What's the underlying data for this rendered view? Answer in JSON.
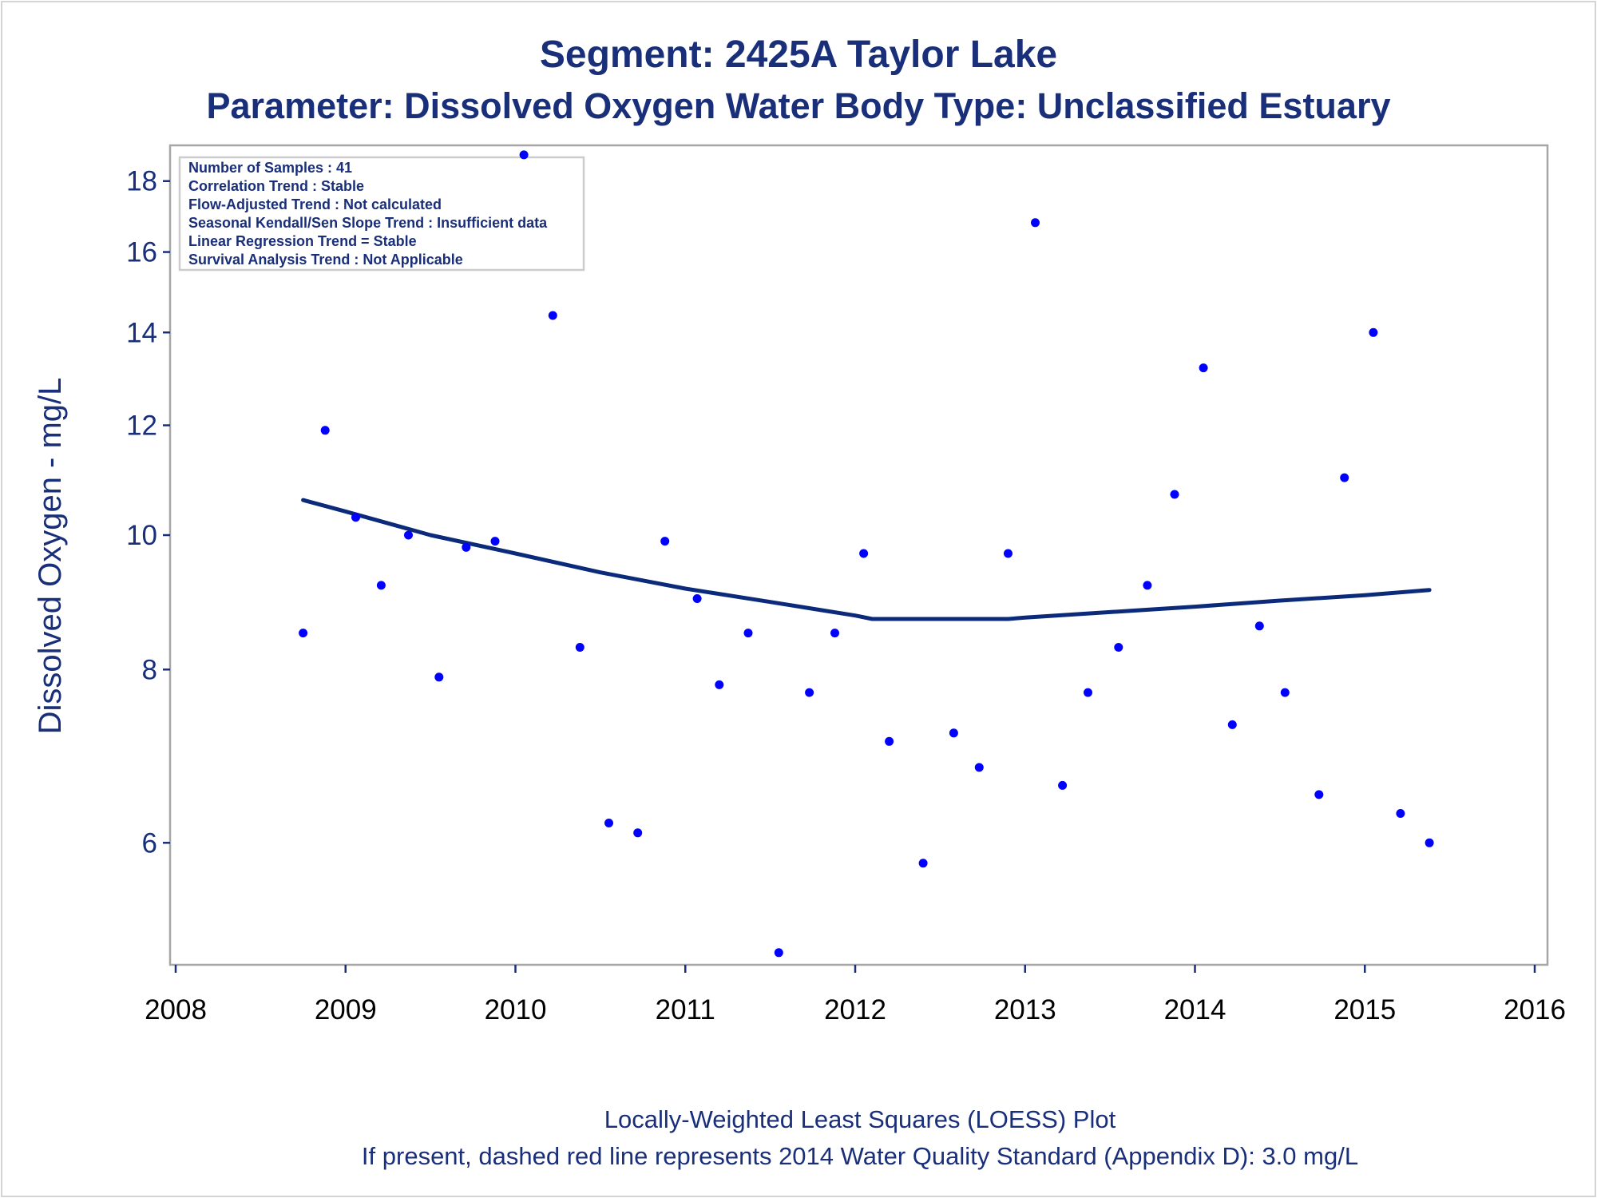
{
  "header": {
    "title": "Segment: 2425A  Taylor Lake",
    "subtitle": "Parameter: Dissolved Oxygen   Water Body Type: Unclassified Estuary"
  },
  "info_box": {
    "lines": [
      "Number of Samples : 41",
      "Correlation Trend : Stable",
      "Flow-Adjusted Trend : Not calculated",
      "Seasonal Kendall/Sen Slope Trend : Insufficient data",
      "Linear Regression Trend = Stable",
      "Survival Analysis Trend : Not Applicable"
    ]
  },
  "footnotes": {
    "line1": "Locally-Weighted Least Squares (LOESS) Plot",
    "line2": "If present, dashed red line represents 2014 Water Quality Standard (Appendix D): 3.0 mg/L"
  },
  "colors": {
    "text": "#1a2f7a",
    "points": "#0000ff",
    "loess": "#0b2a7a",
    "frame": "#a6a6a6"
  },
  "chart_data": {
    "type": "scatter",
    "xlabel": "",
    "ylabel": "Dissolved Oxygen - mg/L",
    "xlim": [
      2008,
      2016
    ],
    "ylim": [
      4.9,
      19.1
    ],
    "y_scale": "log",
    "xticks": [
      2008,
      2009,
      2010,
      2011,
      2012,
      2013,
      2014,
      2015,
      2016
    ],
    "yticks": [
      6,
      8,
      10,
      12,
      14,
      16,
      18
    ],
    "grid": false,
    "series": [
      {
        "kind": "points",
        "marker": "dot",
        "color": "#0000ff",
        "x": [
          2008.75,
          2008.88,
          2009.06,
          2009.21,
          2009.37,
          2009.55,
          2009.71,
          2009.88,
          2010.05,
          2010.22,
          2010.38,
          2010.55,
          2010.72,
          2010.88,
          2011.07,
          2011.2,
          2011.37,
          2011.55,
          2011.73,
          2011.88,
          2012.05,
          2012.2,
          2012.4,
          2012.58,
          2012.73,
          2012.9,
          2013.06,
          2013.22,
          2013.37,
          2013.55,
          2013.72,
          2013.88,
          2014.05,
          2014.22,
          2014.38,
          2014.53,
          2014.73,
          2014.88,
          2015.05,
          2015.21,
          2015.38
        ],
        "y": [
          8.5,
          11.9,
          10.3,
          9.2,
          10.0,
          7.9,
          9.8,
          9.9,
          18.8,
          14.4,
          8.3,
          6.2,
          6.1,
          9.9,
          9.0,
          7.8,
          8.5,
          5.0,
          7.7,
          8.5,
          9.7,
          7.1,
          5.8,
          7.2,
          6.8,
          9.7,
          16.8,
          6.6,
          7.7,
          8.3,
          9.2,
          10.7,
          13.2,
          7.3,
          8.6,
          7.7,
          6.5,
          11.0,
          14.0,
          6.3,
          6.0
        ]
      },
      {
        "kind": "line",
        "color": "#0b2a7a",
        "x": [
          2008.75,
          2009.0,
          2009.5,
          2010.0,
          2010.5,
          2011.0,
          2011.5,
          2012.0,
          2012.1,
          2012.35,
          2012.9,
          2013.0,
          2013.5,
          2014.0,
          2014.5,
          2015.0,
          2015.38
        ],
        "y": [
          10.6,
          10.4,
          10.0,
          9.7,
          9.4,
          9.15,
          8.95,
          8.75,
          8.7,
          8.7,
          8.7,
          8.72,
          8.8,
          8.88,
          8.97,
          9.05,
          9.13
        ]
      }
    ]
  }
}
